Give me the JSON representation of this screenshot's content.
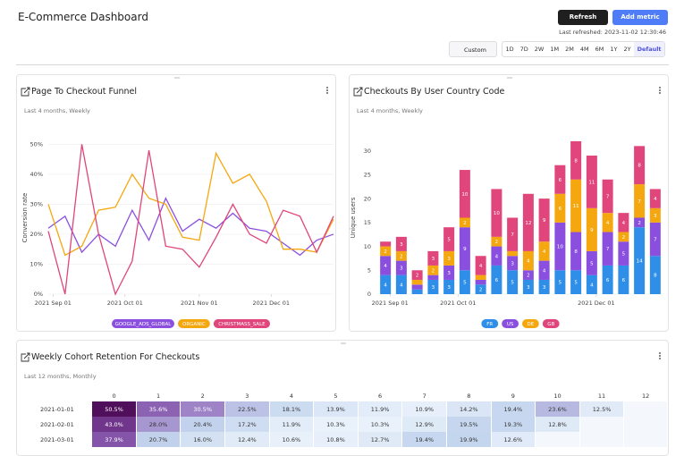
{
  "header": {
    "title": "E-Commerce Dashboard",
    "refresh": "Refresh",
    "add_metric": "Add metric",
    "last_refreshed": "Last refreshed: 2023-11-02 12:30:46",
    "custom": "Custom",
    "ranges": [
      "1D",
      "7D",
      "2W",
      "1M",
      "2M",
      "4M",
      "6M",
      "1Y",
      "2Y",
      "Default"
    ]
  },
  "chart_data": [
    {
      "type": "line",
      "title": "Page To Checkout Funnel",
      "subtitle": "Last 4 months, Weekly",
      "y_label": "Conversion rate",
      "x": [
        "2021-08-30",
        "2021-09-06",
        "2021-09-13",
        "2021-09-20",
        "2021-09-27",
        "2021-10-04",
        "2021-10-11",
        "2021-10-18",
        "2021-10-25",
        "2021-11-01",
        "2021-11-08",
        "2021-11-15",
        "2021-11-22",
        "2021-11-29",
        "2021-12-06",
        "2021-12-13",
        "2021-12-20",
        "2021-12-27"
      ],
      "xlim": [
        "2021-08-30",
        "2021-12-27"
      ],
      "xticks": [
        {
          "value": "2021-09-01",
          "label": "2021 Sep 01"
        },
        {
          "value": "2021-10-01",
          "label": "2021 Oct 01"
        },
        {
          "value": "2021-11-01",
          "label": "2021 Nov 01"
        },
        {
          "value": "2021-12-01",
          "label": "2021 Dec 01"
        }
      ],
      "ylim": [
        0,
        51
      ],
      "yticks": [
        {
          "value": 0,
          "label": "0%"
        },
        {
          "value": 10,
          "label": "10%"
        },
        {
          "value": 20,
          "label": "20%"
        },
        {
          "value": 30,
          "label": "30%"
        },
        {
          "value": 40,
          "label": "40%"
        },
        {
          "value": 50,
          "label": "50%"
        }
      ],
      "grid": true,
      "series": [
        {
          "name": "GOOGLE_ADS_GLOBAL",
          "color": "#8b4fe0",
          "values": [
            22,
            26,
            14,
            20,
            16,
            28,
            18,
            32,
            21,
            25,
            22,
            27,
            22,
            21,
            17,
            13,
            18,
            20
          ]
        },
        {
          "name": "ORGANIC",
          "color": "#f5a70f",
          "values": [
            30,
            13,
            16,
            28,
            29,
            40,
            32,
            30,
            19,
            18,
            47,
            37,
            40,
            31,
            15,
            15,
            14,
            25
          ]
        },
        {
          "name": "CHRISTMASS_SALE",
          "color": "#e0457b",
          "values": [
            21,
            0,
            50,
            20,
            0,
            11,
            48,
            16,
            15,
            9,
            19,
            30,
            20,
            17,
            28,
            26,
            14,
            26
          ]
        }
      ]
    },
    {
      "type": "bar",
      "stacked": true,
      "title": "Checkouts By User Country Code",
      "subtitle": "Last 4 months, Weekly",
      "y_label": "Unique users",
      "x": [
        "2021-08-30",
        "2021-09-06",
        "2021-09-13",
        "2021-09-20",
        "2021-09-27",
        "2021-10-04",
        "2021-10-11",
        "2021-10-18",
        "2021-10-25",
        "2021-11-01",
        "2021-11-08",
        "2021-11-15",
        "2021-11-22",
        "2021-11-29",
        "2021-12-06",
        "2021-12-13",
        "2021-12-20",
        "2021-12-27"
      ],
      "xlim": [
        "2021-08-26",
        "2021-12-31"
      ],
      "xticks": [
        {
          "value": "2021-09-01",
          "label": "2021 Sep 01"
        },
        {
          "value": "2021-10-01",
          "label": "2021 Oct 01"
        },
        {
          "value": "2021-12-01",
          "label": "2021 Dec 01"
        }
      ],
      "ylim": [
        0,
        32
      ],
      "yticks": [
        0,
        5,
        10,
        15,
        20,
        25,
        30
      ],
      "grid": false,
      "series": [
        {
          "name": "FR",
          "color": "#2f8fe8",
          "values": [
            4,
            4,
            1,
            3,
            3,
            5,
            2,
            6,
            5,
            3,
            3,
            5,
            5,
            4,
            6,
            6,
            14,
            8
          ]
        },
        {
          "name": "US",
          "color": "#8b4fe0",
          "values": [
            4,
            3,
            1,
            1,
            3,
            9,
            1,
            4,
            3,
            2,
            4,
            10,
            8,
            5,
            7,
            5,
            2,
            7
          ]
        },
        {
          "name": "DE",
          "color": "#f5a70f",
          "values": [
            2,
            2,
            1,
            2,
            3,
            2,
            1,
            2,
            1,
            4,
            4,
            6,
            11,
            9,
            4,
            2,
            7,
            3
          ]
        },
        {
          "name": "GB",
          "color": "#e0457b",
          "values": [
            1,
            3,
            2,
            3,
            5,
            10,
            4,
            10,
            7,
            12,
            9,
            6,
            8,
            11,
            7,
            4,
            8,
            4
          ]
        }
      ]
    }
  ],
  "cohort": {
    "title": "Weekly Cohort Retention For Checkouts",
    "subtitle": "Last 12 months, Monthly",
    "columns": [
      0,
      1,
      2,
      3,
      4,
      5,
      6,
      7,
      8,
      9,
      10,
      11,
      12
    ],
    "rows": [
      {
        "label": "2021-01-01",
        "values": [
          "50.5%",
          "35.6%",
          "30.5%",
          "22.5%",
          "18.1%",
          "13.9%",
          "11.9%",
          "10.9%",
          "14.2%",
          "19.4%",
          "23.6%",
          "12.5%"
        ]
      },
      {
        "label": "2021-02-01",
        "values": [
          "43.0%",
          "28.0%",
          "20.4%",
          "17.2%",
          "11.9%",
          "10.3%",
          "10.3%",
          "12.9%",
          "19.5%",
          "19.3%",
          "12.8%"
        ]
      },
      {
        "label": "2021-03-01",
        "values": [
          "37.9%",
          "20.7%",
          "16.0%",
          "12.4%",
          "10.6%",
          "10.8%",
          "12.7%",
          "19.4%",
          "19.9%",
          "12.6%"
        ]
      }
    ]
  }
}
